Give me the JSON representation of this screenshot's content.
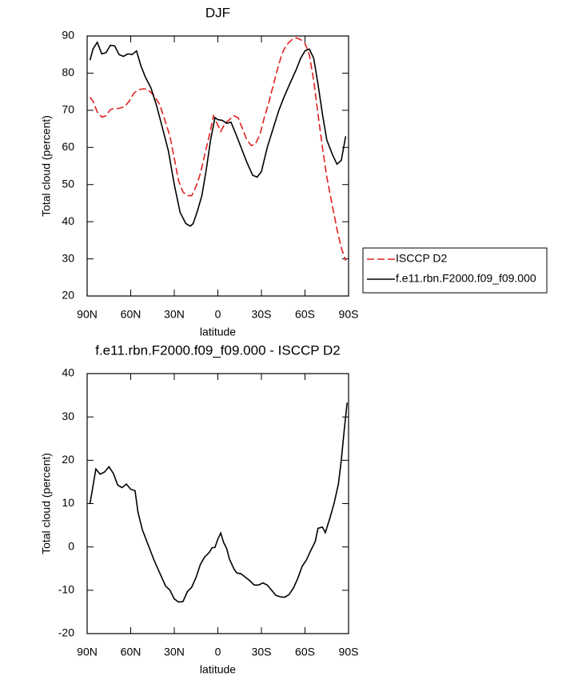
{
  "chart_data": [
    {
      "type": "line",
      "title": "DJF",
      "ylabel": "Total cloud (percent)",
      "xlabel": "latitude",
      "xlim": [
        90,
        -90
      ],
      "ylim": [
        20,
        90
      ],
      "xticks": [
        {
          "value": 90,
          "label": "90N"
        },
        {
          "value": 60,
          "label": "60N"
        },
        {
          "value": 30,
          "label": "30N"
        },
        0,
        {
          "value": -30,
          "label": "30S"
        },
        {
          "value": -60,
          "label": "60S"
        },
        {
          "value": -90,
          "label": "90S"
        }
      ],
      "yticks": [
        20,
        30,
        40,
        50,
        60,
        70,
        80,
        90
      ],
      "legend": "right",
      "series": [
        {
          "name": "ISCCP D2",
          "color": "#e02020",
          "line_style": "dashed",
          "x": [
            88,
            86,
            83,
            80,
            77,
            74,
            71,
            68,
            64,
            61,
            58,
            55,
            51,
            48,
            44,
            40,
            37,
            33,
            30,
            27,
            24,
            21,
            18,
            15,
            12,
            9,
            6,
            3,
            0,
            -2,
            -5,
            -8,
            -11,
            -14,
            -17,
            -20,
            -23,
            -26,
            -29,
            -32,
            -35,
            -38,
            -41,
            -44,
            -47,
            -51,
            -54,
            -57,
            -60,
            -63,
            -66,
            -69,
            -72,
            -75,
            -79,
            -82,
            -85,
            -88
          ],
          "values": [
            73.5,
            72.5,
            69.5,
            68.2,
            68.5,
            70.2,
            70.5,
            70.5,
            71,
            72.5,
            74.5,
            75.5,
            75.8,
            75.5,
            74,
            71.5,
            68,
            63,
            57,
            51,
            48,
            47,
            47,
            49.5,
            53,
            58,
            63,
            68.5,
            66,
            64.3,
            66.5,
            67.5,
            68.5,
            68,
            65,
            62,
            60.5,
            61,
            63.5,
            68,
            72,
            76.5,
            81,
            85,
            87.5,
            89,
            89.5,
            89,
            88,
            85,
            78,
            69,
            60,
            52,
            44,
            38,
            33,
            29.5
          ]
        },
        {
          "name": "f.e11.rbn.F2000.f09_f09.000",
          "color": "#000000",
          "line_style": "solid",
          "x": [
            88,
            86,
            83,
            80,
            77,
            74,
            71,
            68,
            65,
            62,
            59,
            56,
            53,
            50,
            46,
            42,
            38,
            34,
            30,
            26,
            22,
            19,
            17,
            14,
            11,
            8,
            5,
            2,
            0,
            -3,
            -6,
            -9,
            -12,
            -16,
            -20,
            -24,
            -27,
            -30,
            -34,
            -38,
            -42,
            -46,
            -50,
            -54,
            -57,
            -60,
            -63,
            -66,
            -69,
            -72,
            -75,
            -79,
            -82,
            -85,
            -88
          ],
          "values": [
            83.5,
            86.5,
            88.3,
            85.2,
            85.5,
            87.5,
            87.3,
            85,
            84.5,
            85.2,
            85,
            86,
            82,
            79,
            76,
            71,
            65,
            59,
            50,
            42.5,
            39.5,
            38.8,
            39.5,
            43,
            47,
            54,
            62,
            68,
            67.5,
            67.3,
            66.5,
            66.8,
            64,
            60,
            56,
            52.5,
            52,
            53.5,
            60,
            65,
            70,
            74,
            77.5,
            81,
            84,
            86,
            86.5,
            84,
            77,
            69,
            62,
            58,
            55.5,
            56.5,
            63
          ]
        }
      ]
    },
    {
      "type": "line",
      "title": "f.e11.rbn.F2000.f09_f09.000 - ISCCP D2",
      "ylabel": "Total cloud (percent)",
      "xlabel": "latitude",
      "xlim": [
        90,
        -90
      ],
      "ylim": [
        -20,
        40
      ],
      "xticks": [
        {
          "value": 90,
          "label": "90N"
        },
        {
          "value": 60,
          "label": "60N"
        },
        {
          "value": 30,
          "label": "30N"
        },
        0,
        {
          "value": -30,
          "label": "30S"
        },
        {
          "value": -60,
          "label": "60S"
        },
        {
          "value": -90,
          "label": "90S"
        }
      ],
      "yticks": [
        -20,
        -10,
        0,
        10,
        20,
        30,
        40
      ],
      "color": "#000000",
      "x": [
        88,
        84,
        81,
        78,
        75,
        72,
        69,
        66,
        63,
        60,
        57,
        55,
        52,
        48,
        44,
        40,
        36,
        33,
        30,
        27,
        24,
        21,
        18,
        15,
        12,
        9,
        6,
        4,
        2,
        0,
        -2,
        -4,
        -6,
        -8,
        -11,
        -13,
        -16,
        -19,
        -22,
        -25,
        -28,
        -31,
        -34,
        -37,
        -40,
        -43,
        -46,
        -49,
        -52,
        -55,
        -58,
        -61,
        -64,
        -67,
        -69,
        -72,
        -74,
        -77,
        -80,
        -83,
        -85,
        -87,
        -89
      ],
      "values": [
        10,
        18,
        16.8,
        17.3,
        18.5,
        17,
        14.3,
        13.7,
        14.5,
        13.3,
        13,
        8,
        4,
        0.5,
        -3,
        -6,
        -9,
        -10,
        -12,
        -12.7,
        -12.6,
        -10.3,
        -9.3,
        -7,
        -4,
        -2.3,
        -1.3,
        -0.2,
        -0.1,
        1.8,
        3.2,
        1,
        -0.3,
        -2.8,
        -5,
        -6,
        -6.2,
        -7,
        -7.8,
        -8.8,
        -8.8,
        -8.3,
        -8.8,
        -10,
        -11.2,
        -11.5,
        -11.6,
        -11,
        -9.5,
        -7.3,
        -4.5,
        -3,
        -0.8,
        1.2,
        4.3,
        4.6,
        3.3,
        6.5,
        10,
        14.5,
        20,
        27,
        33.3
      ]
    }
  ]
}
